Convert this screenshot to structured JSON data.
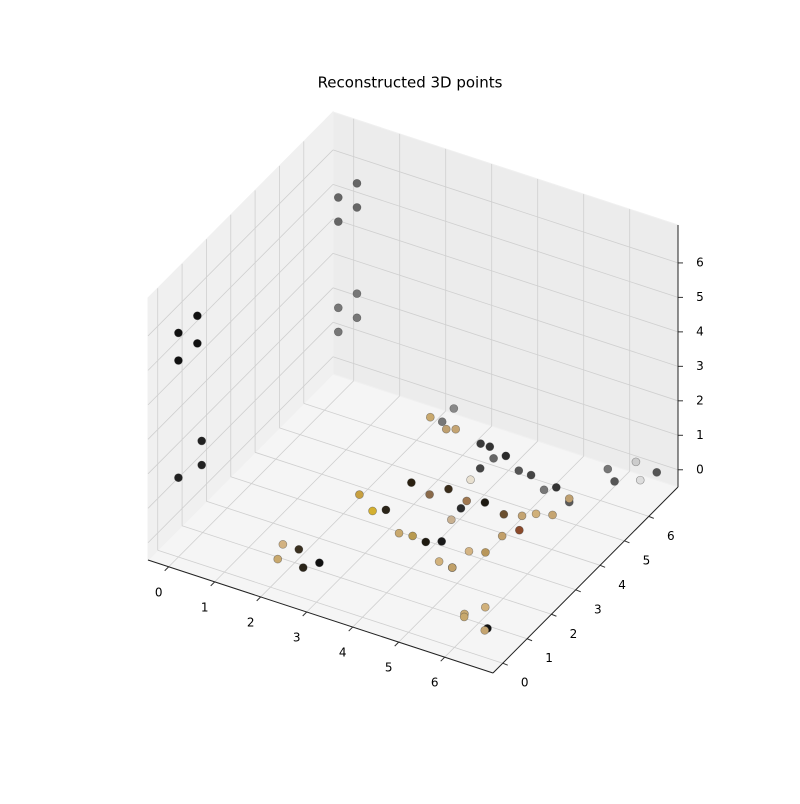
{
  "chart_data": {
    "type": "scatter3d",
    "title": "Reconstructed 3D points",
    "xlim": [
      -0.45,
      7.05
    ],
    "ylim": [
      -0.4,
      7.2
    ],
    "zlim": [
      -0.5,
      7.1
    ],
    "xticks": [
      0,
      1,
      2,
      3,
      4,
      5,
      6
    ],
    "yticks": [
      0,
      1,
      2,
      3,
      4,
      5,
      6
    ],
    "zticks": [
      0,
      1,
      2,
      3,
      4,
      5,
      6
    ],
    "grid": true,
    "x": [
      0,
      0.2,
      0,
      0.2,
      0,
      0.4,
      0.4,
      0.3,
      0.6,
      0.3,
      0.6,
      0.3,
      0.6,
      0.3,
      0.6,
      2.0,
      2.3,
      2.5,
      1.9,
      2.8,
      6.0,
      6.3,
      6.5,
      6.4,
      5.9,
      6.0,
      6.4,
      6.6,
      6.2,
      6.8,
      2.3,
      2.6,
      2.8,
      2.4,
      2.7,
      3.5,
      3.84,
      4.17,
      4.51,
      4.84,
      5.18,
      5.51,
      5.85,
      5.0,
      5.12,
      5.24,
      5.36,
      5.49,
      5.61,
      5.73,
      5.85,
      2.4,
      2.77,
      3.14,
      3.51,
      3.89,
      4.26,
      4.63,
      5.0,
      3.0,
      3.38,
      3.77,
      4.15,
      4.53,
      4.92,
      5.3,
      4.4,
      4.26,
      4.12,
      3.98,
      3.84,
      3.7
    ],
    "y": [
      0,
      0.4,
      0,
      0.4,
      0,
      0.2,
      0.2,
      6,
      6.2,
      6,
      6.2,
      6,
      6.2,
      6,
      6.2,
      0.3,
      0.6,
      0.4,
      0.7,
      0.5,
      0.4,
      0.7,
      0.3,
      0.6,
      0.6,
      6.3,
      6.7,
      6.5,
      6.2,
      6.8,
      6.0,
      6.4,
      6.1,
      6.3,
      5.9,
      5.8,
      5.69,
      5.57,
      5.46,
      5.34,
      5.23,
      5.11,
      5.0,
      1.8,
      2.26,
      2.71,
      3.17,
      3.63,
      4.09,
      4.54,
      5.0,
      2.9,
      2.74,
      2.59,
      2.43,
      2.27,
      2.11,
      1.96,
      1.8,
      3.9,
      3.93,
      3.97,
      4.0,
      4.03,
      4.07,
      4.1,
      2.5,
      3.16,
      3.82,
      4.48,
      5.14,
      5.8
    ],
    "z": [
      6.0,
      6.3,
      5.2,
      5.5,
      1.8,
      2.2,
      2.9,
      5.8,
      6.2,
      5.1,
      5.5,
      2.6,
      3.0,
      1.9,
      2.3,
      0.1,
      0.3,
      0,
      0.2,
      0.2,
      0.1,
      0.3,
      0,
      -0.2,
      0,
      0.2,
      0.3,
      0,
      0,
      0.1,
      0.3,
      0.4,
      0.1,
      0,
      0.2,
      0.2,
      0,
      0.3,
      0.1,
      0.2,
      0,
      0.3,
      0.1,
      0.1,
      0.3,
      0,
      0.2,
      0.1,
      0.3,
      0,
      0.2,
      0.3,
      0.1,
      0.4,
      0,
      0.2,
      0.3,
      0,
      0.1,
      0.2,
      0,
      0.3,
      0.1,
      0.2,
      0,
      0.1,
      0.1,
      0.2,
      0,
      0.3,
      0.1,
      0.2
    ],
    "colors": [
      "#111111",
      "#111111",
      "#111111",
      "#111111",
      "#222222",
      "#222222",
      "#222222",
      "#666666",
      "#666666",
      "#666666",
      "#666666",
      "#777777",
      "#777777",
      "#777777",
      "#777777",
      "#c9a96e",
      "#3a3020",
      "#2a2418",
      "#d2b282",
      "#111111",
      "#c8a86c",
      "#d0b07a",
      "#c4a470",
      "#111111",
      "#c9aa72",
      "#777777",
      "#cccccc",
      "#dddddd",
      "#555555",
      "#555555",
      "#c9a96e",
      "#888888",
      "#c4a472",
      "#777777",
      "#bfa070",
      "#3a3a3a",
      "#666666",
      "#2b2b2b",
      "#555555",
      "#444444",
      "#777777",
      "#333333",
      "#5a5a5a",
      "#c9a96e",
      "#d4b483",
      "#b8965a",
      "#c2a06a",
      "#8b4a2b",
      "#d0b07a",
      "#c5a572",
      "#bfa070",
      "#c8a040",
      "#d4b030",
      "#2a2418",
      "#c9a96e",
      "#b89a50",
      "#1f1a10",
      "#d2b27c",
      "#c0a068",
      "#2a2010",
      "#8a6a4a",
      "#3a2c1a",
      "#a07850",
      "#1e1a12",
      "#6b5030",
      "#c4a472",
      "#1a1a1a",
      "#c8b090",
      "#2c2c2c",
      "#e8e0d0",
      "#444444",
      "#333333"
    ]
  }
}
